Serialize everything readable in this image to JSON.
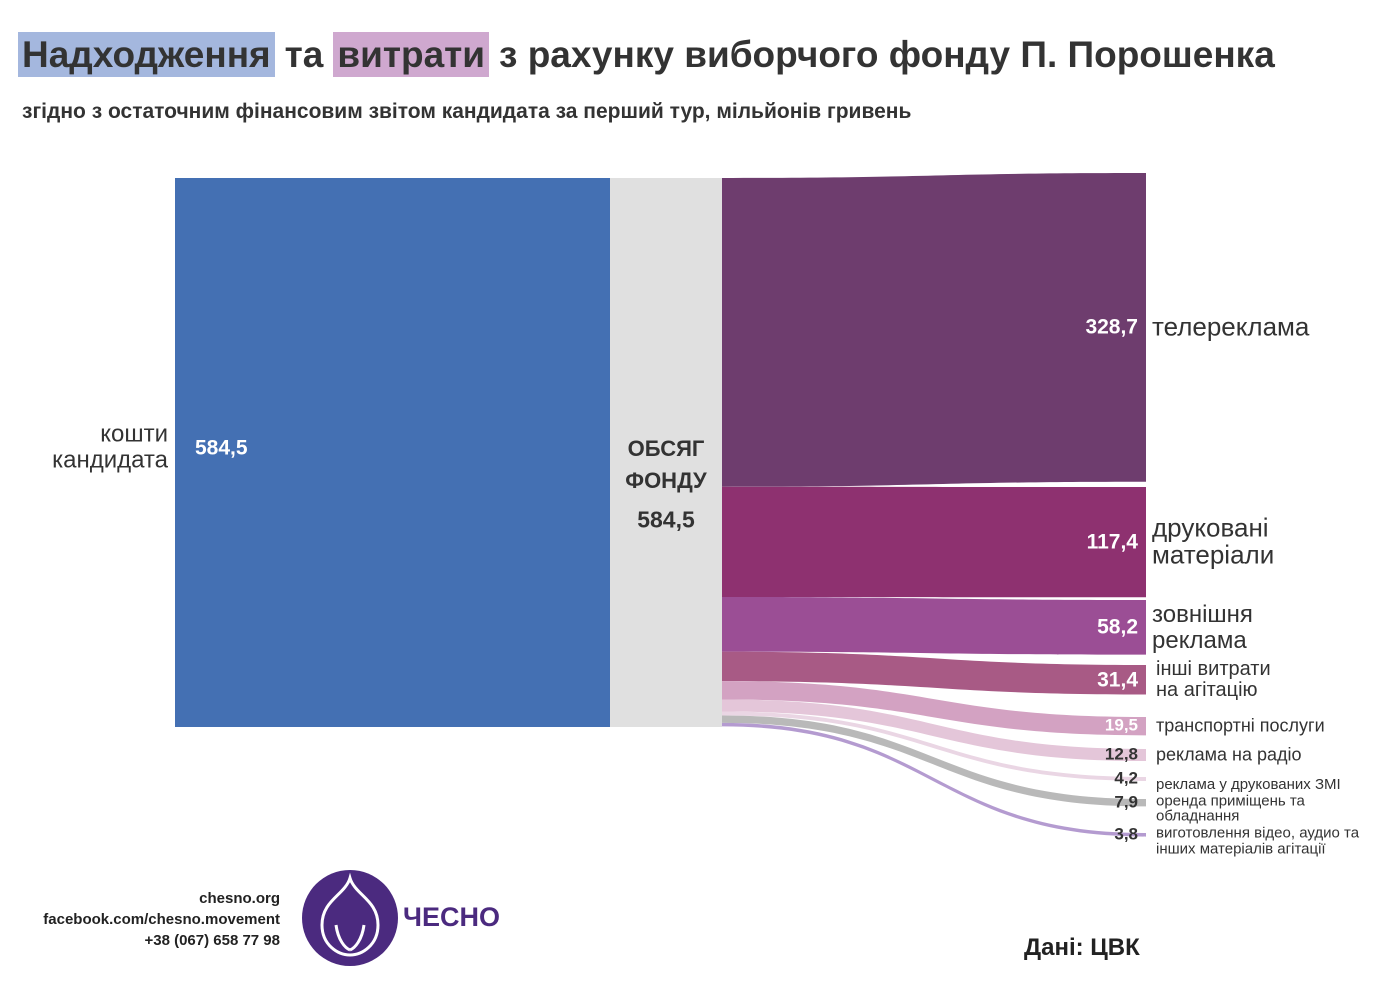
{
  "chart_data": {
    "type": "sankey",
    "title": [
      "Надходження",
      "та",
      "витрати",
      "з рахунку виборчого фонду П. Порошенка"
    ],
    "subtitle": "згідно з остаточним фінансовим звітом кандидата за перший тур, мільйонів гривень",
    "nodes": {
      "labels": [
        "кошти кандидата",
        "ОБСЯГ ФОНДУ"
      ],
      "values": [
        584.5,
        584.5
      ],
      "value_labels": [
        "584,5",
        "584,5"
      ],
      "colors": [
        "#4470b3",
        "#e0e0e0"
      ]
    },
    "targets": {
      "labels": [
        "телереклама",
        "друковані матеріали",
        "зовнішня реклама",
        "інші витрати на агітацію",
        "транспортні послуги",
        "реклама на радіо",
        "реклама у друкованих ЗМІ",
        "оренда приміщень та обладнання",
        "виготовлення відео, аудио та інших матеріалів агітації"
      ],
      "values": [
        328.7,
        117.4,
        58.2,
        31.4,
        19.5,
        12.8,
        4.2,
        7.9,
        3.8
      ],
      "value_labels": [
        "328,7",
        "117,4",
        "58,2",
        "31,4",
        "19,5",
        "12,8",
        "4,2",
        "7,9",
        "3,8"
      ],
      "colors": [
        "#6e3d6e",
        "#8e3170",
        "#9b4e95",
        "#a85a85",
        "#d3a2c2",
        "#e4c6d9",
        "#ead6e4",
        "#b9b9b9",
        "#b49bd0"
      ]
    }
  },
  "footer": {
    "contacts": [
      "chesno.org",
      "facebook.com/chesno.movement",
      "+38 (067) 658 77 98"
    ],
    "brand": "ЧЕСНО",
    "source": "Дані: ЦВК"
  }
}
